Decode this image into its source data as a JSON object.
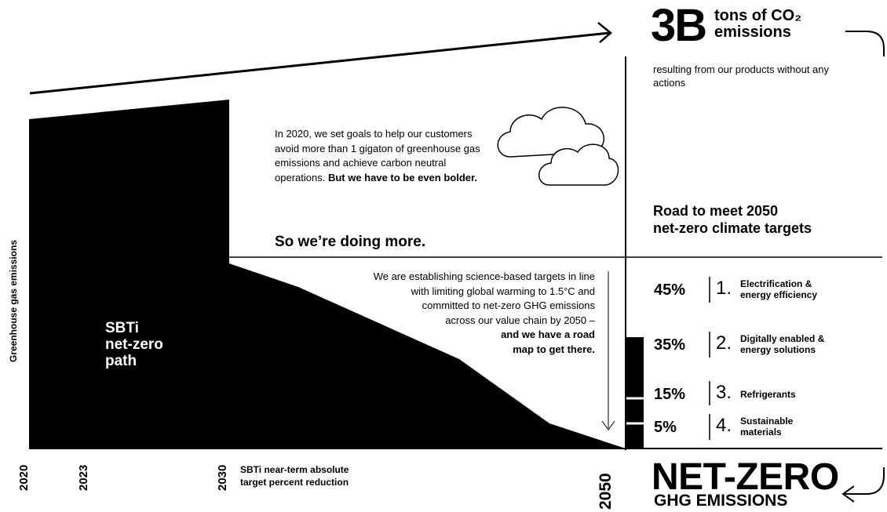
{
  "header": {
    "big_number": "3B",
    "unit_line1": "tons of CO₂",
    "unit_line2": "emissions",
    "description": "resulting from our products without any actions"
  },
  "intro": {
    "paragraph": "In 2020, we set goals to help our customers avoid more than 1 gigaton of greenhouse gas emissions and achieve carbon neutral operations.",
    "bold_line": "But we have to be even bolder.",
    "headline": "So we’re doing more."
  },
  "sbti_text": {
    "line1": "We are establishing science-based targets in line",
    "line2": "with limiting global warming to 1.5°C and",
    "line3": "committed to net-zero GHG emissions",
    "line4": "across our value chain by 2050 –",
    "line5": "and we have a road",
    "line6": "map to get there."
  },
  "path_label": {
    "line1": "SBTi",
    "line2": "net-zero",
    "line3": "path"
  },
  "road_title": {
    "line1": "Road to meet 2050",
    "line2": "net-zero climate targets"
  },
  "breakdown": [
    {
      "percent": "45%",
      "number": "1.",
      "label_lines": [
        "Electrification &",
        "energy efficiency"
      ]
    },
    {
      "percent": "35%",
      "number": "2.",
      "label_lines": [
        "Digitally enabled &",
        "energy solutions"
      ]
    },
    {
      "percent": "15%",
      "number": "3.",
      "label_lines": [
        "Refrigerants"
      ]
    },
    {
      "percent": "5%",
      "number": "4.",
      "label_lines": [
        "Sustainable",
        "materials"
      ]
    }
  ],
  "axis": {
    "y_label": "Greenhouse gas emissions",
    "years": [
      "2020",
      "2023",
      "2030",
      "2050"
    ],
    "near_term_line1": "SBTi near-term absolute",
    "near_term_line2": "target percent reduction"
  },
  "footer": {
    "net_zero": "NET-ZERO",
    "ghg": "GHG EMISSIONS"
  },
  "colors": {
    "ink": "#000000",
    "paper": "#ffffff"
  }
}
